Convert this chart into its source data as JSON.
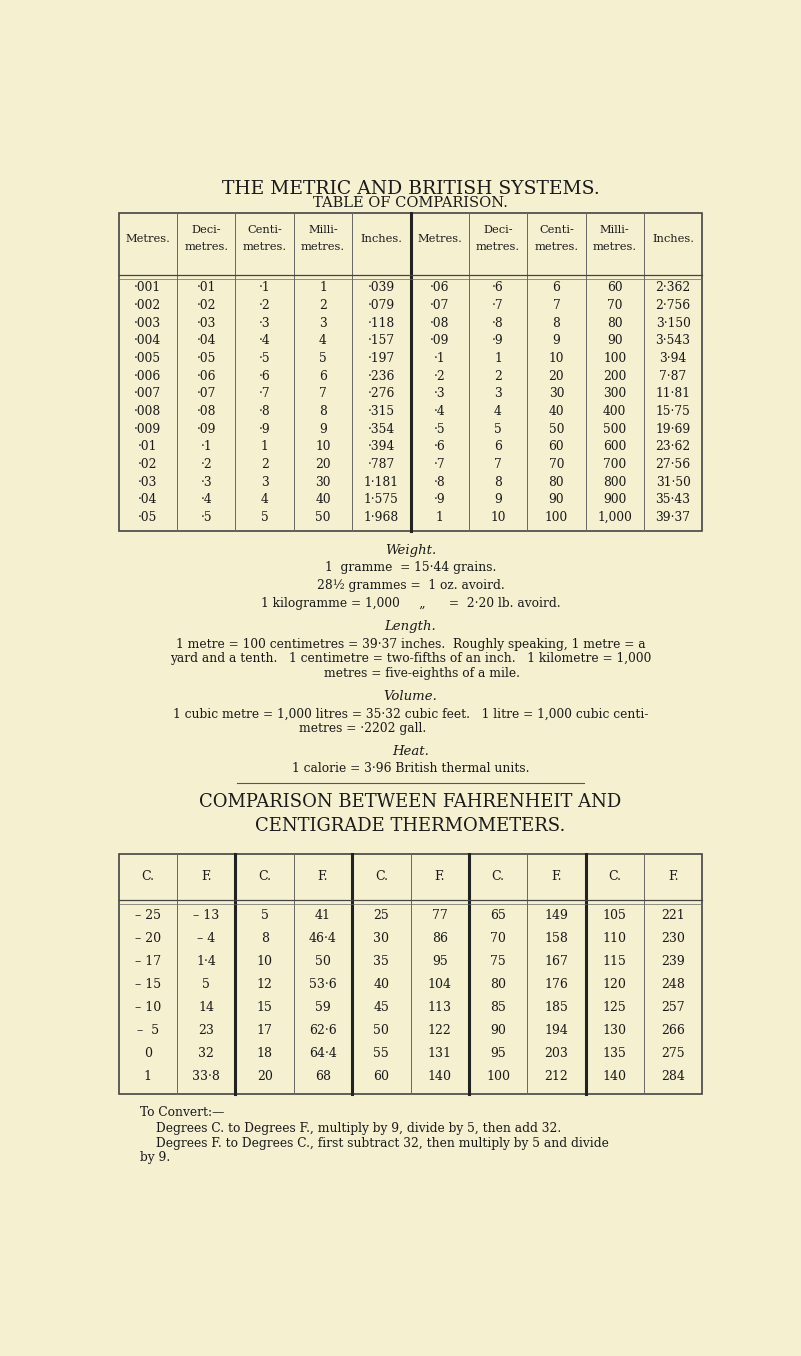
{
  "bg_color": "#f5f0d0",
  "title1": "THE METRIC AND BRITISH SYSTEMS.",
  "title2": "TABLE OF COMPARISON.",
  "table1_headers": [
    "Metres.",
    "Deci-\nmetres.",
    "Centi-\nmetres.",
    "Milli-\nmetres.",
    "Inches.",
    "Metres.",
    "Deci-\nmetres.",
    "Centi-\nmetres.",
    "Milli-\nmetres.",
    "Inches."
  ],
  "table1_rows": [
    [
      "·001",
      "·01",
      "·1",
      "1",
      "·039",
      "·06",
      "·6",
      "6",
      "60",
      "2·362"
    ],
    [
      "·002",
      "·02",
      "·2",
      "2",
      "·079",
      "·07",
      "·7",
      "7",
      "70",
      "2·756"
    ],
    [
      "·003",
      "·03",
      "·3",
      "3",
      "·118",
      "·08",
      "·8",
      "8",
      "80",
      "3·150"
    ],
    [
      "·004",
      "·04",
      "·4",
      "4",
      "·157",
      "·09",
      "·9",
      "9",
      "90",
      "3·543"
    ],
    [
      "·005",
      "·05",
      "·5",
      "5",
      "·197",
      "·1",
      "1",
      "10",
      "100",
      "3·94"
    ],
    [
      "·006",
      "·06",
      "·6",
      "6",
      "·236",
      "·2",
      "2",
      "20",
      "200",
      "7·87"
    ],
    [
      "·007",
      "·07",
      "·7",
      "7",
      "·276",
      "·3",
      "3",
      "30",
      "300",
      "11·81"
    ],
    [
      "·008",
      "·08",
      "·8",
      "8",
      "·315",
      "·4",
      "4",
      "40",
      "400",
      "15·75"
    ],
    [
      "·009",
      "·09",
      "·9",
      "9",
      "·354",
      "·5",
      "5",
      "50",
      "500",
      "19·69"
    ],
    [
      "·01",
      "·1",
      "1",
      "10",
      "·394",
      "·6",
      "6",
      "60",
      "600",
      "23·62"
    ],
    [
      "·02",
      "·2",
      "2",
      "20",
      "·787",
      "·7",
      "7",
      "70",
      "700",
      "27·56"
    ],
    [
      "·03",
      "·3",
      "3",
      "30",
      "1·181",
      "·8",
      "8",
      "80",
      "800",
      "31·50"
    ],
    [
      "·04",
      "·4",
      "4",
      "40",
      "1·575",
      "·9",
      "9",
      "90",
      "900",
      "35·43"
    ],
    [
      "·05",
      "·5",
      "5",
      "50",
      "1·968",
      "1",
      "10",
      "100",
      "1,000",
      "39·37"
    ]
  ],
  "weight_title": "Weight.",
  "weight_lines": [
    "1  gramme  = 15·44 grains.",
    "28½ grammes =  1 oz. avoird.",
    "1 kilogramme = 1,000     „      =  2·20 lb. avoird."
  ],
  "length_title": "Length.",
  "length_line1": "1 metre = 100 centimetres = 39·37 inches.  Roughly speaking, 1 metre = a",
  "length_line2": "yard and a tenth.   1 centimetre = two-fifths of an inch.   1 kilometre = 1,000",
  "length_line3": "metres = five-eighths of a mile.",
  "volume_title": "Volume.",
  "volume_line1": "1 cubic metre = 1,000 litres = 35·32 cubic feet.   1 litre = 1,000 cubic centi-",
  "volume_line2": "metres = ·2202 gall.",
  "heat_title": "Heat.",
  "heat_text": "1 calorie = 3·96 British thermal units.",
  "thermo_title1": "COMPARISON BETWEEN FAHRENHEIT AND",
  "thermo_title2": "CENTIGRADE THERMOMETERS.",
  "thermo_headers": [
    "C.",
    "F.",
    "C.",
    "F.",
    "C.",
    "F.",
    "C.",
    "F.",
    "C.",
    "F."
  ],
  "thermo_rows": [
    [
      "– 25",
      "– 13",
      "5",
      "41",
      "25",
      "77",
      "65",
      "149",
      "105",
      "221"
    ],
    [
      "– 20",
      "– 4",
      "8",
      "46·4",
      "30",
      "86",
      "70",
      "158",
      "110",
      "230"
    ],
    [
      "– 17",
      "1·4",
      "10",
      "50",
      "35",
      "95",
      "75",
      "167",
      "115",
      "239"
    ],
    [
      "– 15",
      "5",
      "12",
      "53·6",
      "40",
      "104",
      "80",
      "176",
      "120",
      "248"
    ],
    [
      "– 10",
      "14",
      "15",
      "59",
      "45",
      "113",
      "85",
      "185",
      "125",
      "257"
    ],
    [
      "–  5",
      "23",
      "17",
      "62·6",
      "50",
      "122",
      "90",
      "194",
      "130",
      "266"
    ],
    [
      "0",
      "32",
      "18",
      "64·4",
      "55",
      "131",
      "95",
      "203",
      "135",
      "275"
    ],
    [
      "1",
      "33·8",
      "20",
      "68",
      "60",
      "140",
      "100",
      "212",
      "140",
      "284"
    ]
  ],
  "convert_line0": "To Convert:—",
  "convert_line1": "Degrees C. to Degrees F., multiply by 9, divide by 5, then add 32.",
  "convert_line2a": "Degrees F. to Degrees C., first subtract 32, then multiply by 5 and divide",
  "convert_line2b": "by 9."
}
